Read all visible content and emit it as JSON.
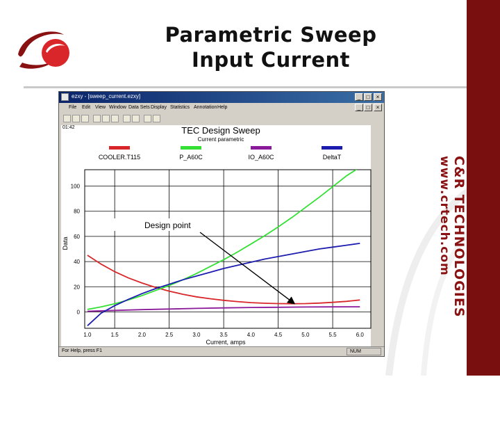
{
  "slide": {
    "title_line1": "Parametric Sweep",
    "title_line2": "Input Current",
    "brand_name": "C&R TECHNOLOGIES",
    "brand_url": "www.crtech.com"
  },
  "window": {
    "title": "ezxy - [sweep_current.ezxy]",
    "menu": [
      "File",
      "Edit",
      "View",
      "Window",
      "Data Sets",
      "Display",
      "Statistics",
      "Annotation",
      "Help"
    ],
    "toolbar_icons": [
      "new-icon",
      "open-icon",
      "save-icon",
      "print-icon",
      "copy-icon",
      "paste-icon",
      "chart-icon",
      "zoom-icon",
      "help-icon",
      "arrow-icon"
    ],
    "corner_label": "01:42",
    "status_text": "For Help, press F1",
    "status_right": "NUM"
  },
  "colors": {
    "brand": "#7a0f10",
    "cooler": "#d8262a",
    "p_a60c": "#33e033",
    "io_a60c": "#8b1a9a",
    "deltat": "#1c1cb0"
  },
  "chart_data": {
    "type": "line",
    "title": "TEC Design Sweep",
    "subtitle": "Current parametric",
    "xlabel": "Current, amps",
    "ylabel": "Data",
    "xlim": [
      0.95,
      6.2
    ],
    "ylim": [
      -13,
      113
    ],
    "x_ticks": [
      "1.0",
      "1.5",
      "2.0",
      "2.5",
      "3.0",
      "3.5",
      "4.0",
      "4.5",
      "5.0",
      "5.5",
      "6.0"
    ],
    "y_ticks": [
      "0",
      "20",
      "40",
      "60",
      "80",
      "100"
    ],
    "grid": true,
    "legend_position": "top",
    "annotation": "Design point",
    "annotation_target": {
      "x": 4.8,
      "y": 6.5
    },
    "series": [
      {
        "name": "COOLER.T115",
        "color": "#d8262a",
        "x": [
          1.0,
          1.25,
          1.5,
          1.75,
          2.0,
          2.25,
          2.5,
          2.75,
          3.0,
          3.25,
          3.5,
          3.75,
          4.0,
          4.25,
          4.5,
          4.75,
          5.0,
          5.25,
          5.5,
          5.75,
          6.0
        ],
        "y": [
          45,
          38,
          32,
          27,
          23,
          19.5,
          16.5,
          14,
          12,
          10.5,
          9.2,
          8.2,
          7.4,
          6.9,
          6.6,
          6.5,
          6.6,
          7,
          7.6,
          8.4,
          9.5
        ]
      },
      {
        "name": "P_A60C",
        "color": "#33e033",
        "x": [
          1.0,
          1.25,
          1.5,
          1.75,
          2.0,
          2.25,
          2.5,
          2.75,
          3.0,
          3.25,
          3.5,
          3.75,
          4.0,
          4.25,
          4.5,
          4.75,
          5.0,
          5.25,
          5.5,
          5.75,
          6.0
        ],
        "y": [
          2,
          4,
          6.5,
          9.5,
          13,
          17,
          21,
          25.5,
          30.5,
          36,
          41.5,
          47.5,
          54,
          60.5,
          67.5,
          75,
          83,
          91,
          99.5,
          108,
          115
        ]
      },
      {
        "name": "IO_A60C",
        "color": "#8b1a9a",
        "x": [
          1.0,
          1.5,
          2.0,
          2.5,
          3.0,
          3.5,
          4.0,
          4.5,
          5.0,
          5.5,
          6.0
        ],
        "y": [
          0.5,
          1.2,
          1.8,
          2.3,
          2.8,
          3.2,
          3.5,
          3.7,
          3.9,
          4.0,
          4.1
        ]
      },
      {
        "name": "DeltaT",
        "color": "#1c1cb0",
        "x": [
          1.0,
          1.25,
          1.5,
          1.75,
          2.0,
          2.25,
          2.5,
          2.75,
          3.0,
          3.25,
          3.5,
          3.75,
          4.0,
          4.25,
          4.5,
          4.75,
          5.0,
          5.25,
          5.5,
          5.75,
          6.0
        ],
        "y": [
          -11,
          -1,
          5,
          10,
          14.5,
          18.5,
          22,
          25.5,
          28.5,
          31.5,
          34.5,
          37,
          39.5,
          42,
          44,
          46,
          48,
          50,
          51.5,
          53,
          54.5
        ]
      }
    ]
  }
}
